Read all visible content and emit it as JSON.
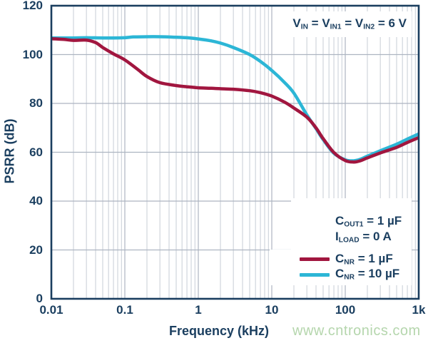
{
  "watermark": {
    "text": "www.cntronics.com",
    "color": "#b5d6ad"
  },
  "colors": {
    "axis_text": "#1a3e5f",
    "spine": "#1a3e5f",
    "grid_major": "#adb5c1",
    "grid_minor": "#c7cdd6",
    "series_red": "#a1163f",
    "series_cyan": "#2cb6d6"
  },
  "chart_data": {
    "type": "line",
    "title": "",
    "xlabel": "Frequency (kHz)",
    "ylabel": "PSRR (dB)",
    "x_scale": "log",
    "xlim": [
      0.01,
      1000
    ],
    "ylim": [
      0,
      120
    ],
    "grid": "on",
    "x_ticks": [
      "0.01",
      "0.1",
      "1",
      "10",
      "100",
      "1k"
    ],
    "y_ticks": [
      "0",
      "20",
      "40",
      "60",
      "80",
      "100",
      "120"
    ],
    "annotation": "V_{IN} = V_{IN1} = V_{IN2} = 6 V",
    "conditions": [
      "C_{OUT1} = 1 µF",
      "I_{LOAD} = 0 A"
    ],
    "legend_position": "lower right",
    "series": [
      {
        "name": "C_{NR} = 1 µF",
        "color": "#a1163f",
        "points": [
          [
            0.01,
            106.5
          ],
          [
            0.015,
            106.2
          ],
          [
            0.02,
            105.8
          ],
          [
            0.03,
            105.9
          ],
          [
            0.04,
            104.9
          ],
          [
            0.05,
            102.9
          ],
          [
            0.07,
            100.3
          ],
          [
            0.1,
            97.8
          ],
          [
            0.15,
            93.9
          ],
          [
            0.2,
            91.0
          ],
          [
            0.3,
            88.5
          ],
          [
            0.5,
            87.3
          ],
          [
            0.7,
            86.8
          ],
          [
            1,
            86.4
          ],
          [
            1.5,
            86.2
          ],
          [
            2,
            86.0
          ],
          [
            3,
            85.8
          ],
          [
            5,
            85.2
          ],
          [
            7,
            84.4
          ],
          [
            10,
            83.0
          ],
          [
            15,
            80.5
          ],
          [
            20,
            78.1
          ],
          [
            30,
            74.4
          ],
          [
            40,
            70.0
          ],
          [
            50,
            65.6
          ],
          [
            70,
            59.9
          ],
          [
            100,
            56.6
          ],
          [
            130,
            56.0
          ],
          [
            160,
            56.5
          ],
          [
            200,
            57.7
          ],
          [
            300,
            59.7
          ],
          [
            500,
            62.0
          ],
          [
            700,
            64.0
          ],
          [
            1000,
            66.0
          ]
        ]
      },
      {
        "name": "C_{NR} = 10 µF",
        "color": "#2cb6d6",
        "points": [
          [
            0.01,
            106.8
          ],
          [
            0.02,
            106.8
          ],
          [
            0.03,
            106.9
          ],
          [
            0.05,
            106.8
          ],
          [
            0.07,
            106.8
          ],
          [
            0.1,
            106.9
          ],
          [
            0.13,
            107.2
          ],
          [
            0.2,
            107.3
          ],
          [
            0.3,
            107.3
          ],
          [
            0.5,
            107.1
          ],
          [
            0.7,
            106.9
          ],
          [
            1,
            106.4
          ],
          [
            1.5,
            105.6
          ],
          [
            2,
            104.7
          ],
          [
            3,
            102.9
          ],
          [
            5,
            100.0
          ],
          [
            7,
            97.2
          ],
          [
            10,
            93.5
          ],
          [
            15,
            88.5
          ],
          [
            20,
            84.2
          ],
          [
            30,
            75.3
          ],
          [
            40,
            69.7
          ],
          [
            50,
            65.2
          ],
          [
            70,
            59.6
          ],
          [
            100,
            56.9
          ],
          [
            130,
            56.5
          ],
          [
            160,
            57.1
          ],
          [
            200,
            58.4
          ],
          [
            300,
            60.6
          ],
          [
            500,
            63.3
          ],
          [
            700,
            65.4
          ],
          [
            1000,
            67.5
          ]
        ]
      }
    ]
  }
}
